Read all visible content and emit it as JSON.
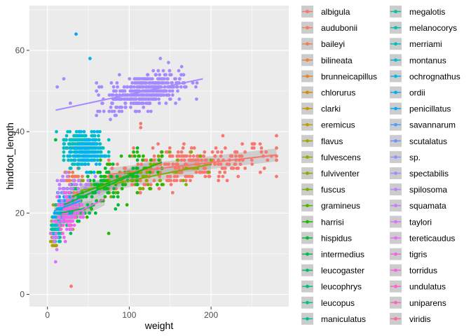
{
  "chart_data": {
    "type": "scatter",
    "title": "",
    "xlabel": "weight",
    "ylabel": "hindfoot_length",
    "xlim": [
      -22,
      295
    ],
    "ylim": [
      -3,
      71
    ],
    "x_ticks": [
      0,
      100,
      200
    ],
    "y_ticks": [
      0,
      20,
      40,
      60
    ],
    "grid": true,
    "legend_placement": "right",
    "legend_columns": 2,
    "smooth_lines": true,
    "series": [
      {
        "name": "albigula",
        "color": "#F8766D",
        "center": [
          170,
          32
        ],
        "spread": [
          55,
          2.5
        ],
        "range": [
          75,
          280
        ],
        "fit": [
          [
            75,
            29.5
          ],
          [
            280,
            34.3
          ]
        ],
        "n": 260
      },
      {
        "name": "audubonii",
        "color": "#F47A61",
        "center": [
          42,
          26
        ],
        "spread": [
          6,
          2
        ],
        "range": [
          30,
          55
        ],
        "fit": null,
        "n": 0
      },
      {
        "name": "baileyi",
        "color": "#EE7E55",
        "center": [
          32,
          28
        ],
        "spread": [
          6,
          1.5
        ],
        "range": [
          15,
          50
        ],
        "fit": null,
        "n": 40
      },
      {
        "name": "bilineata",
        "color": "#E8823D",
        "center": [
          14,
          19
        ],
        "spread": [
          3,
          1.5
        ],
        "range": [
          8,
          22
        ],
        "fit": null,
        "n": 10
      },
      {
        "name": "brunneicapillus",
        "color": "#E1862F",
        "center": [
          20,
          22
        ],
        "spread": [
          4,
          2
        ],
        "range": [
          10,
          30
        ],
        "fit": null,
        "n": 0
      },
      {
        "name": "chlorurus",
        "color": "#D88A00",
        "center": [
          30,
          26
        ],
        "spread": [
          5,
          2
        ],
        "range": [
          20,
          40
        ],
        "fit": null,
        "n": 0
      },
      {
        "name": "clarki",
        "color": "#C79800",
        "center": [
          12,
          16
        ],
        "spread": [
          3,
          2
        ],
        "range": [
          5,
          20
        ],
        "fit": null,
        "n": 0
      },
      {
        "name": "eremicus",
        "color": "#B79F00",
        "center": [
          22,
          20
        ],
        "spread": [
          4,
          1.5
        ],
        "range": [
          12,
          35
        ],
        "fit": null,
        "n": 40
      },
      {
        "name": "flavus",
        "color": "#A7A400",
        "center": [
          8,
          15
        ],
        "spread": [
          2,
          2
        ],
        "range": [
          4,
          15
        ],
        "fit": null,
        "n": 70
      },
      {
        "name": "fulvescens",
        "color": "#97A800",
        "center": [
          14,
          20
        ],
        "spread": [
          3,
          1.5
        ],
        "range": [
          8,
          20
        ],
        "fit": null,
        "n": 15
      },
      {
        "name": "fulviventer",
        "color": "#86AC00",
        "center": [
          120,
          28
        ],
        "spread": [
          50,
          2
        ],
        "range": [
          40,
          200
        ],
        "fit": [
          [
            40,
            25.5
          ],
          [
            200,
            32
          ]
        ],
        "n": 60
      },
      {
        "name": "fuscus",
        "color": "#72B000",
        "center": [
          40,
          24
        ],
        "spread": [
          6,
          2
        ],
        "range": [
          30,
          50
        ],
        "fit": null,
        "n": 0
      },
      {
        "name": "gramineus",
        "color": "#55B400",
        "center": [
          25,
          22
        ],
        "spread": [
          5,
          2
        ],
        "range": [
          15,
          35
        ],
        "fit": null,
        "n": 0
      },
      {
        "name": "harrisi",
        "color": "#23B800",
        "center": [
          95,
          29
        ],
        "spread": [
          35,
          3
        ],
        "range": [
          30,
          140
        ],
        "fit": [
          [
            30,
            24
          ],
          [
            140,
            32.5
          ]
        ],
        "n": 60
      },
      {
        "name": "hispidus",
        "color": "#00BA38",
        "center": [
          65,
          26
        ],
        "spread": [
          30,
          3
        ],
        "range": [
          20,
          110
        ],
        "fit": [
          [
            20,
            22
          ],
          [
            110,
            30
          ]
        ],
        "n": 70
      },
      {
        "name": "intermedius",
        "color": "#00BC4F",
        "center": [
          30,
          22
        ],
        "spread": [
          10,
          2
        ],
        "range": [
          15,
          55
        ],
        "fit": [
          [
            15,
            20
          ],
          [
            55,
            21.5
          ]
        ],
        "n": 25
      },
      {
        "name": "leucogaster",
        "color": "#00BD63",
        "center": [
          30,
          22
        ],
        "spread": [
          8,
          2.5
        ],
        "range": [
          15,
          50
        ],
        "fit": null,
        "n": 60
      },
      {
        "name": "leucophrys",
        "color": "#00BF75",
        "center": [
          18,
          21
        ],
        "spread": [
          4,
          2
        ],
        "range": [
          10,
          30
        ],
        "fit": null,
        "n": 0
      },
      {
        "name": "leucopus",
        "color": "#00C086",
        "center": [
          20,
          20
        ],
        "spread": [
          4,
          2
        ],
        "range": [
          10,
          30
        ],
        "fit": null,
        "n": 0
      },
      {
        "name": "maniculatus",
        "color": "#00C096",
        "center": [
          22,
          20
        ],
        "spread": [
          5,
          1.5
        ],
        "range": [
          10,
          40
        ],
        "fit": null,
        "n": 70
      },
      {
        "name": "megalotis",
        "color": "#00C0A5",
        "center": [
          11,
          16
        ],
        "spread": [
          3,
          1.5
        ],
        "range": [
          5,
          20
        ],
        "fit": null,
        "n": 60
      },
      {
        "name": "melanocorys",
        "color": "#00C0B3",
        "center": [
          30,
          20
        ],
        "spread": [
          5,
          2
        ],
        "range": [
          20,
          40
        ],
        "fit": null,
        "n": 0
      },
      {
        "name": "merriami",
        "color": "#00BFC4",
        "center": [
          44,
          36
        ],
        "spread": [
          12,
          1.7
        ],
        "range": [
          20,
          75
        ],
        "fit": null,
        "n": 330
      },
      {
        "name": "montanus",
        "color": "#00BCD5",
        "center": [
          9,
          16
        ],
        "spread": [
          2,
          1.5
        ],
        "range": [
          5,
          14
        ],
        "fit": null,
        "n": 10
      },
      {
        "name": "ochrognathus",
        "color": "#00B8E4",
        "center": [
          30,
          24
        ],
        "spread": [
          6,
          2
        ],
        "range": [
          20,
          45
        ],
        "fit": null,
        "n": 0
      },
      {
        "name": "ordii",
        "color": "#00B2F3",
        "center": [
          48,
          35
        ],
        "spread": [
          8,
          2
        ],
        "range": [
          25,
          70
        ],
        "fit": null,
        "n": 110
      },
      {
        "name": "penicillatus",
        "color": "#00A9FF",
        "center": [
          20,
          21.5
        ],
        "spread": [
          5,
          1.5
        ],
        "range": [
          8,
          40
        ],
        "fit": [
          [
            8,
            20.5
          ],
          [
            40,
            23
          ]
        ],
        "n": 120
      },
      {
        "name": "savannarum",
        "color": "#4C9EFF",
        "center": [
          20,
          20
        ],
        "spread": [
          3,
          2
        ],
        "range": [
          10,
          30
        ],
        "fit": null,
        "n": 0
      },
      {
        "name": "scutalatus",
        "color": "#6B94FF",
        "center": [
          60,
          30
        ],
        "spread": [
          10,
          3
        ],
        "range": [
          40,
          80
        ],
        "fit": null,
        "n": 0
      },
      {
        "name": "sp.",
        "color": "#8B93FF",
        "center": [
          30,
          25
        ],
        "spread": [
          8,
          3
        ],
        "range": [
          15,
          50
        ],
        "fit": null,
        "n": 0
      },
      {
        "name": "spectabilis",
        "color": "#A58AFF",
        "center": [
          120,
          50
        ],
        "spread": [
          22,
          2
        ],
        "range": [
          60,
          190
        ],
        "fit": [
          [
            10,
            45.3
          ],
          [
            190,
            53
          ]
        ],
        "n": 420
      },
      {
        "name": "spilosoma",
        "color": "#BB81FF",
        "center": [
          30,
          27
        ],
        "spread": [
          12,
          2
        ],
        "range": [
          10,
          75
        ],
        "fit": null,
        "n": 40
      },
      {
        "name": "squamata",
        "color": "#CD79FF",
        "center": [
          170,
          32
        ],
        "spread": [
          20,
          2
        ],
        "range": [
          140,
          200
        ],
        "fit": null,
        "n": 0
      },
      {
        "name": "taylori",
        "color": "#DB72FB",
        "center": [
          8,
          14
        ],
        "spread": [
          2,
          1.5
        ],
        "range": [
          4,
          12
        ],
        "fit": null,
        "n": 10
      },
      {
        "name": "tereticaudus",
        "color": "#E76BF3",
        "center": [
          28,
          20
        ],
        "spread": [
          10,
          2
        ],
        "range": [
          10,
          70
        ],
        "fit": [
          [
            10,
            17.5
          ],
          [
            70,
            23.5
          ]
        ],
        "n": 50
      },
      {
        "name": "tigris",
        "color": "#F066E9",
        "center": [
          30,
          20
        ],
        "spread": [
          6,
          2
        ],
        "range": [
          15,
          45
        ],
        "fit": null,
        "n": 0
      },
      {
        "name": "torridus",
        "color": "#F763DD",
        "center": [
          24,
          21
        ],
        "spread": [
          5,
          2
        ],
        "range": [
          10,
          45
        ],
        "fit": null,
        "n": 60
      },
      {
        "name": "undulatus",
        "color": "#FC61D1",
        "center": [
          30,
          22
        ],
        "spread": [
          6,
          2
        ],
        "range": [
          15,
          45
        ],
        "fit": null,
        "n": 0
      },
      {
        "name": "uniparens",
        "color": "#FF62BC",
        "center": [
          28,
          20
        ],
        "spread": [
          6,
          2
        ],
        "range": [
          15,
          40
        ],
        "fit": null,
        "n": 0
      },
      {
        "name": "viridis",
        "color": "#FF6A98",
        "center": [
          30,
          22
        ],
        "spread": [
          8,
          2
        ],
        "range": [
          15,
          50
        ],
        "fit": null,
        "n": 0
      }
    ],
    "outliers": [
      {
        "series": "penicillatus",
        "x": 35,
        "y": 64
      },
      {
        "series": "ordii",
        "x": 52,
        "y": 58
      },
      {
        "series": "albigula",
        "x": 29,
        "y": 2
      },
      {
        "series": "albigula",
        "x": 114,
        "y": 42
      },
      {
        "series": "albigula",
        "x": 114,
        "y": 41
      },
      {
        "series": "spectabilis",
        "x": 88,
        "y": 54
      },
      {
        "series": "spectabilis",
        "x": 12,
        "y": 51
      },
      {
        "series": "spectabilis",
        "x": 20,
        "y": 53
      },
      {
        "series": "spectabilis",
        "x": 28,
        "y": 47
      },
      {
        "series": "spectabilis",
        "x": 69,
        "y": 45
      },
      {
        "series": "spectabilis",
        "x": 77,
        "y": 43
      },
      {
        "series": "spectabilis",
        "x": 138,
        "y": 58
      },
      {
        "series": "spectabilis",
        "x": 148,
        "y": 57
      },
      {
        "series": "taylori",
        "x": 10,
        "y": 8
      },
      {
        "series": "merriami",
        "x": 11,
        "y": 40
      },
      {
        "series": "hispidus",
        "x": 10,
        "y": 38
      }
    ]
  }
}
